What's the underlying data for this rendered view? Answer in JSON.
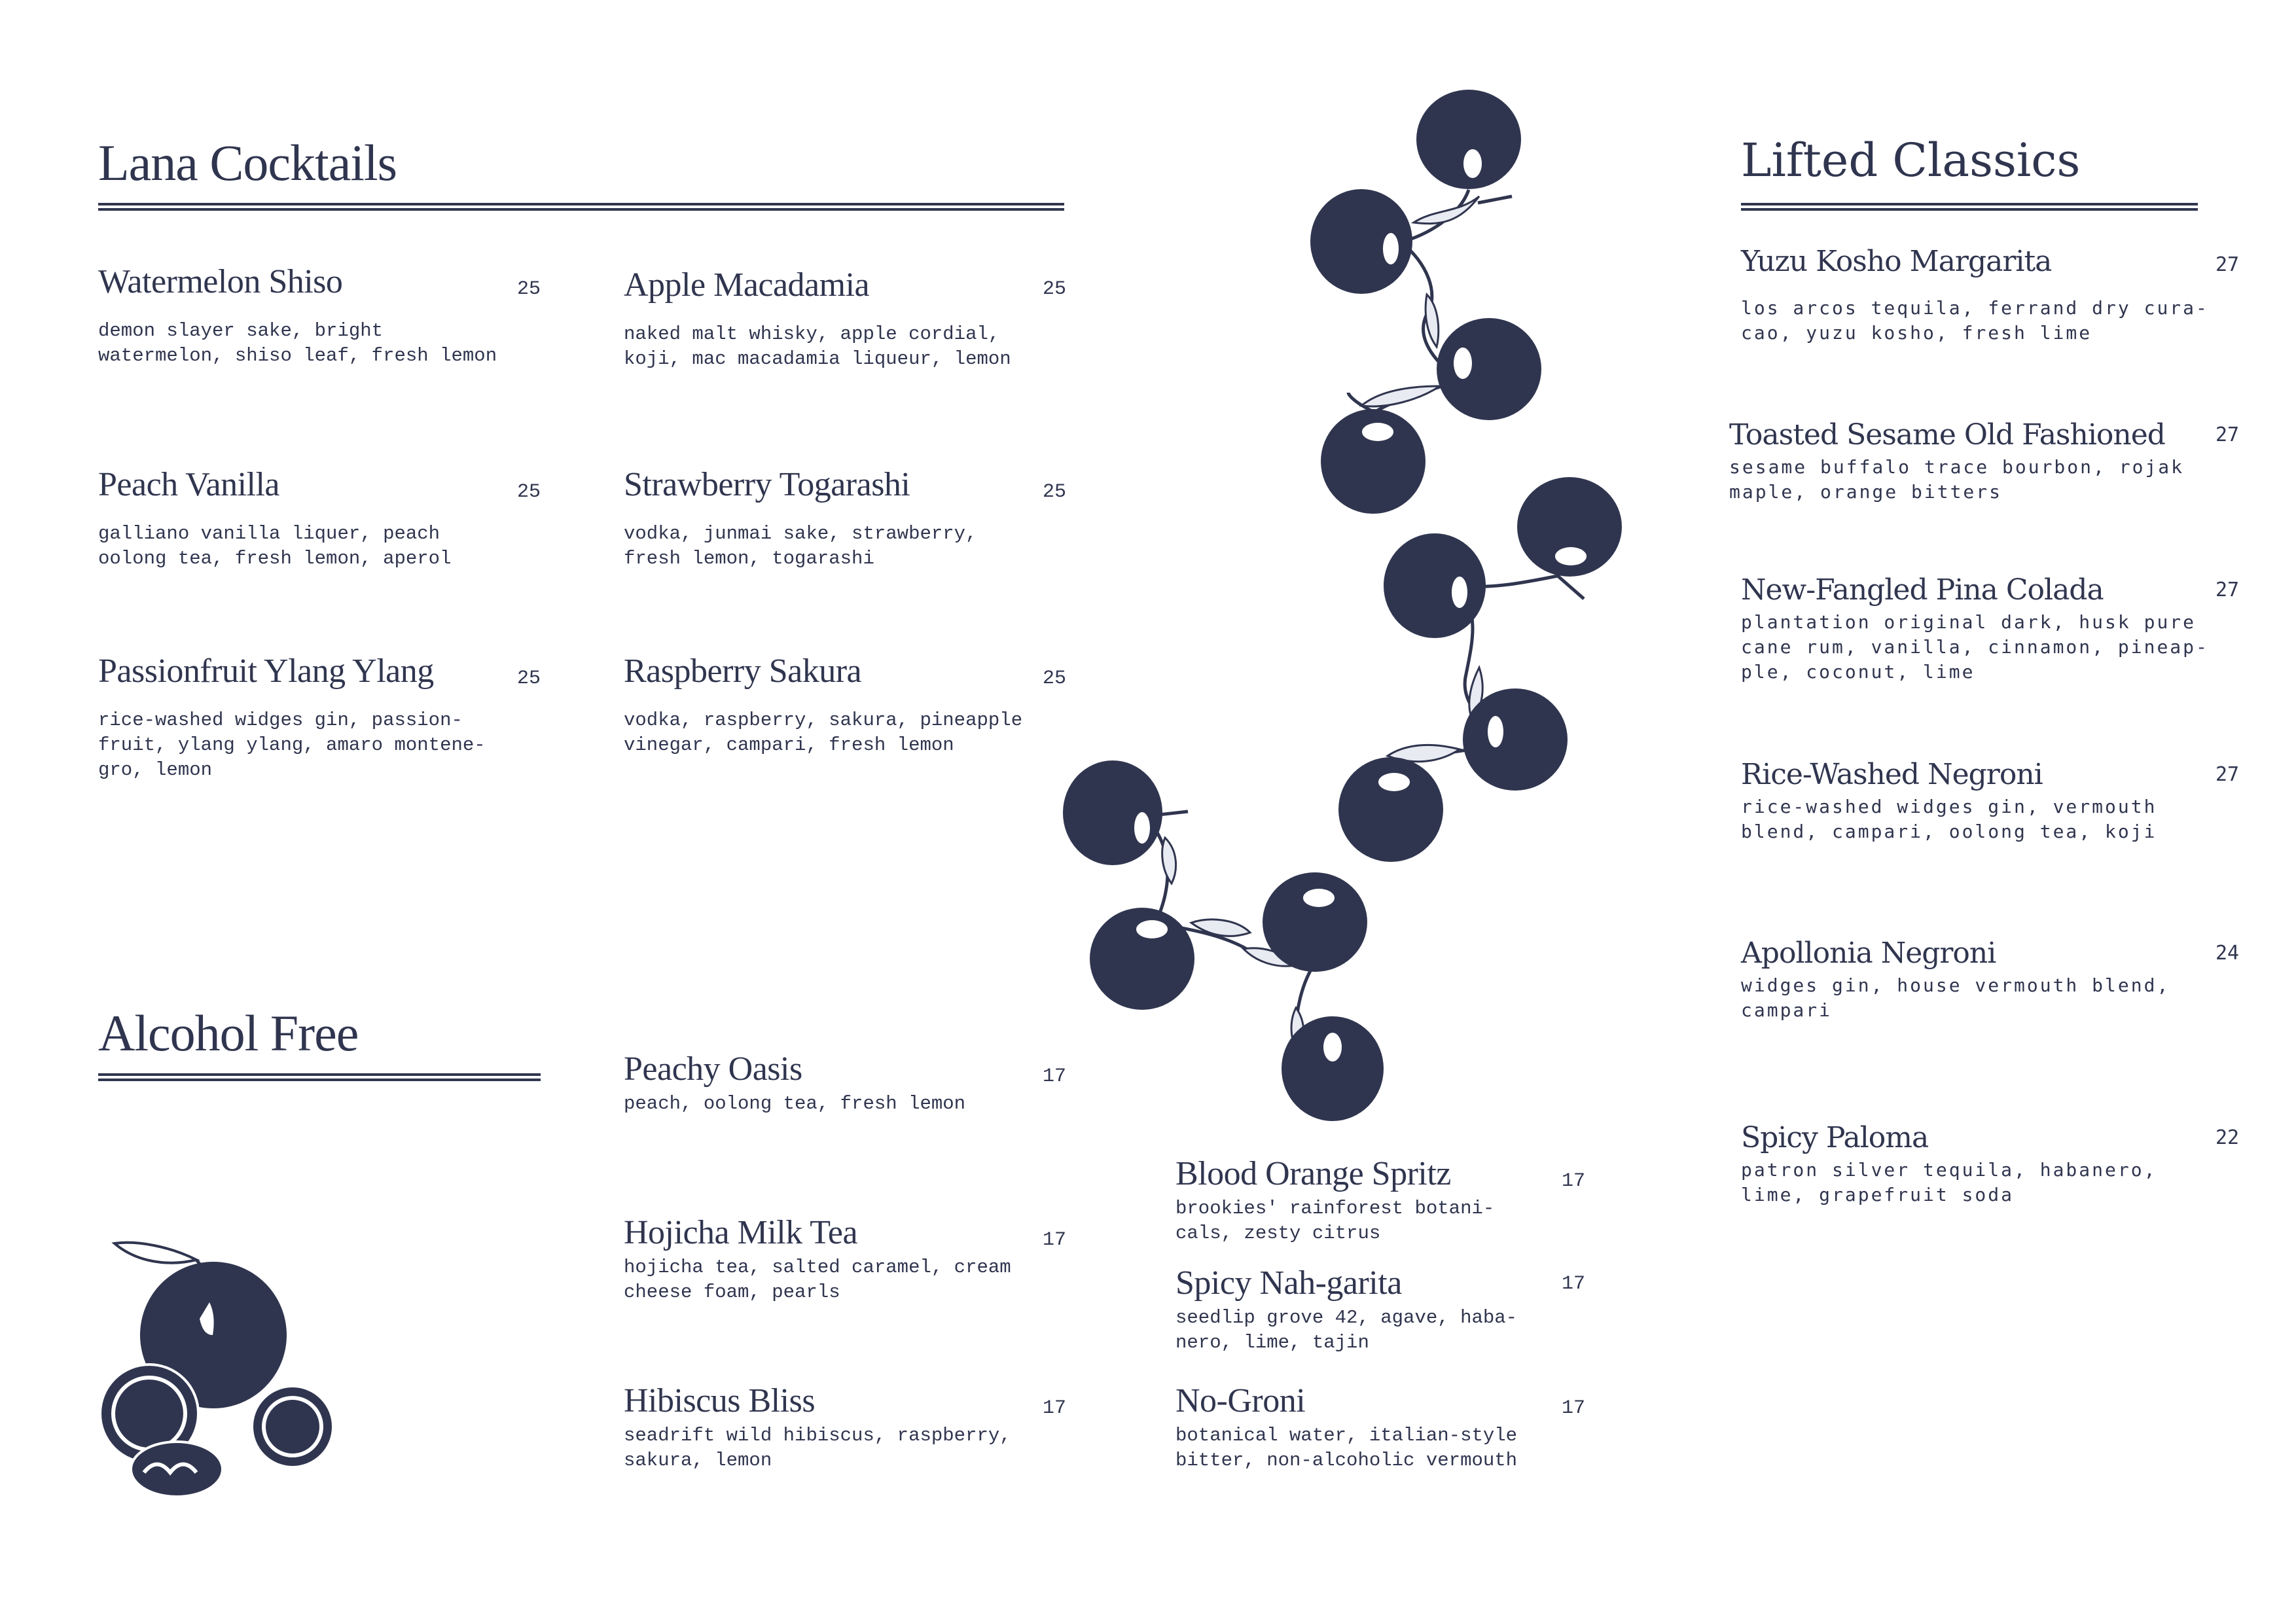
{
  "colors": {
    "ink": "#30354f",
    "background": "#ffffff"
  },
  "lana_cocktails": {
    "title": "Lana Cocktails",
    "items": [
      {
        "name": "Watermelon Shiso",
        "price": "25",
        "description": "demon slayer sake, bright\nwatermelon, shiso leaf, fresh lemon"
      },
      {
        "name": "Peach Vanilla",
        "price": "25",
        "description": "galliano vanilla liquer, peach\noolong tea, fresh lemon, aperol"
      },
      {
        "name": "Passionfruit Ylang Ylang",
        "price": "25",
        "description": "rice-washed widges gin, passion-\nfruit, ylang ylang, amaro montene-\ngro, lemon"
      },
      {
        "name": "Apple Macadamia",
        "price": "25",
        "description": "naked malt whisky, apple cordial,\nkoji, mac macadamia liqueur, lemon"
      },
      {
        "name": "Strawberry Togarashi",
        "price": "25",
        "description": "vodka, junmai sake, strawberry,\nfresh lemon, togarashi"
      },
      {
        "name": "Raspberry Sakura",
        "price": "25",
        "description": "vodka, raspberry, sakura, pineapple\nvinegar, campari, fresh lemon"
      }
    ]
  },
  "alcohol_free": {
    "title": "Alcohol Free",
    "items": [
      {
        "name": "Peachy Oasis",
        "price": "17",
        "description": "peach, oolong tea, fresh lemon"
      },
      {
        "name": "Hojicha Milk Tea",
        "price": "17",
        "description": "hojicha tea, salted caramel, cream\ncheese foam, pearls"
      },
      {
        "name": "Hibiscus Bliss",
        "price": "17",
        "description": "seadrift wild hibiscus, raspberry,\nsakura, lemon"
      },
      {
        "name": "Blood Orange Spritz",
        "price": "17",
        "description": "brookies' rainforest botani-\ncals, zesty citrus"
      },
      {
        "name": "Spicy Nah-garita",
        "price": "17",
        "description": "seedlip grove 42, agave, haba-\nnero, lime, tajin"
      },
      {
        "name": "No-Groni",
        "price": "17",
        "description": "botanical water, italian-style\nbitter, non-alcoholic vermouth"
      }
    ]
  },
  "lifted_classics": {
    "title": "Lifted Classics",
    "items": [
      {
        "name": "Yuzu Kosho Margarita",
        "price": "27",
        "description": "los arcos tequila, ferrand dry cura-\ncao, yuzu kosho, fresh lime"
      },
      {
        "name": "Toasted Sesame Old Fashioned",
        "price": "27",
        "description": "sesame buffalo trace bourbon, rojak\nmaple, orange bitters"
      },
      {
        "name": "New-Fangled Pina Colada",
        "price": "27",
        "description": "plantation original dark, husk pure\ncane rum, vanilla, cinnamon, pineap-\nple, coconut, lime"
      },
      {
        "name": "Rice-Washed Negroni",
        "price": "27",
        "description": "rice-washed widges gin, vermouth\nblend, campari, oolong tea, koji"
      },
      {
        "name": "Apollonia Negroni",
        "price": "24",
        "description": "widges gin, house vermouth blend,\ncampari"
      },
      {
        "name": "Spicy Paloma",
        "price": "22",
        "description": "patron silver tequila, habanero,\nlime, grapefruit soda"
      }
    ]
  }
}
